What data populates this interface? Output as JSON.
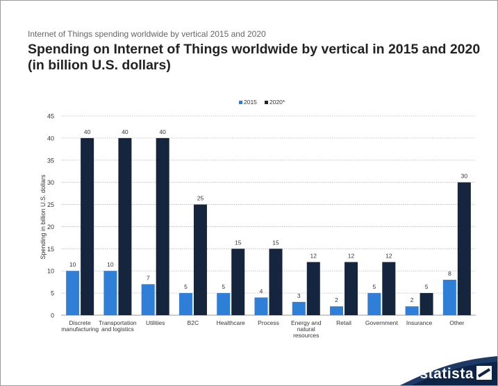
{
  "header": {
    "subtitle": "Internet of Things spending worldwide by vertical 2015 and 2020",
    "title": "Spending on Internet of Things worldwide by vertical in 2015 and 2020 (in billion U.S. dollars)"
  },
  "chart_data": {
    "type": "bar",
    "categories": [
      [
        "Discrete",
        "manufacturing"
      ],
      [
        "Transportation",
        "and logistics"
      ],
      [
        "Utilities"
      ],
      [
        "B2C"
      ],
      [
        "Healthcare"
      ],
      [
        "Process"
      ],
      [
        "Energy and",
        "natural",
        "resources"
      ],
      [
        "Retail"
      ],
      [
        "Government"
      ],
      [
        "Insurance"
      ],
      [
        "Other"
      ]
    ],
    "series": [
      {
        "name": "2015",
        "color": "#2f7ed8",
        "values": [
          10,
          10,
          7,
          5,
          5,
          4,
          3,
          2,
          5,
          2,
          8
        ]
      },
      {
        "name": "2020*",
        "color": "#14253d",
        "values": [
          40,
          40,
          40,
          25,
          15,
          15,
          12,
          12,
          12,
          5,
          30
        ]
      }
    ],
    "ylabel": "Spending in billion U.S. dollars",
    "ylim": [
      0,
      45
    ],
    "yticks": [
      0,
      5,
      10,
      15,
      20,
      25,
      30,
      35,
      40,
      45
    ],
    "grid": true,
    "legend": "top-center"
  },
  "branding": {
    "logo": "statista"
  }
}
